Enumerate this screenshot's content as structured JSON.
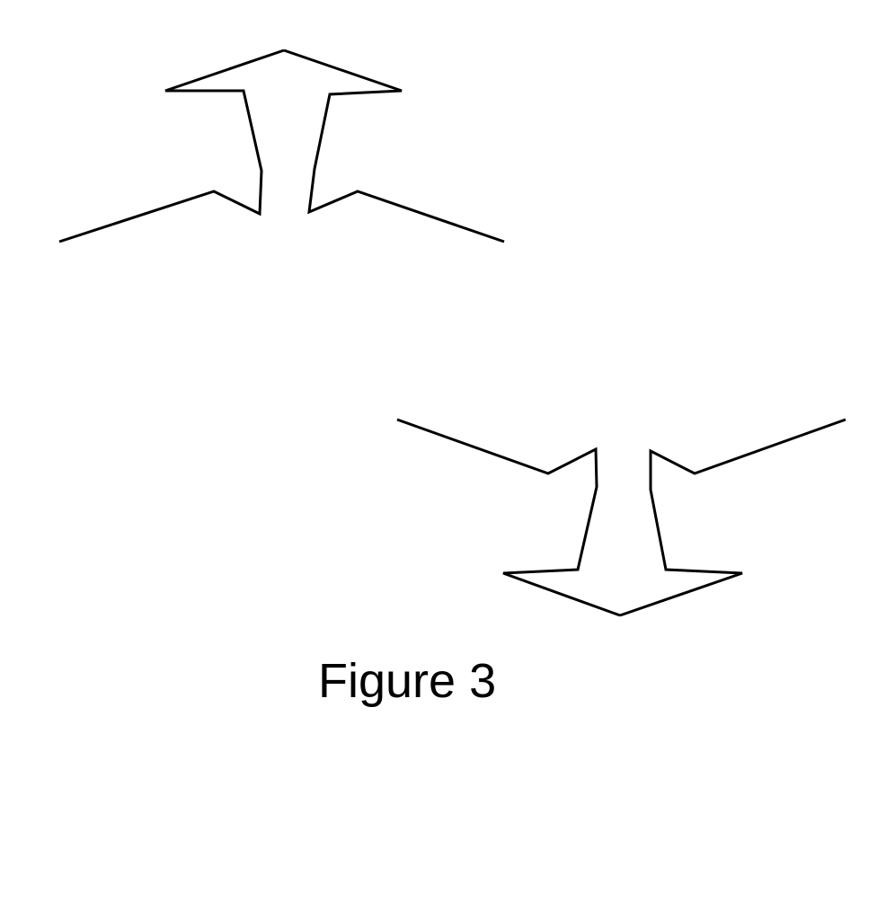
{
  "figure": {
    "caption": "Figure 3",
    "stroke_color": "#000000",
    "background_color": "#ffffff",
    "shapes": [
      "upward-arrow-outline",
      "downward-arrow-outline"
    ]
  }
}
